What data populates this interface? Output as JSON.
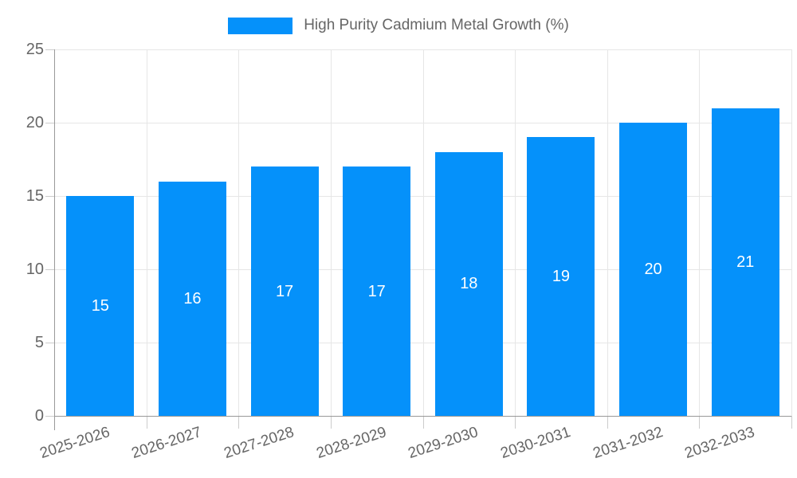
{
  "chart_data": {
    "type": "bar",
    "title": "High Purity Cadmium Metal Growth (%)",
    "legend_entries": [
      "High Purity Cadmium Metal Growth (%)"
    ],
    "legend_position": "top",
    "categories": [
      "2025-2026",
      "2026-2027",
      "2027-2028",
      "2028-2029",
      "2029-2030",
      "2030-2031",
      "2031-2032",
      "2032-2033"
    ],
    "series": [
      {
        "name": "High Purity Cadmium Metal Growth (%)",
        "values": [
          15,
          16,
          17,
          17,
          18,
          19,
          20,
          21
        ]
      }
    ],
    "bar_labels": [
      "15",
      "16",
      "17",
      "17",
      "18",
      "19",
      "20",
      "21"
    ],
    "xlabel": "",
    "ylabel": "",
    "ylim": [
      0,
      25
    ],
    "y_ticks": [
      0,
      5,
      10,
      15,
      20,
      25
    ],
    "grid": true
  },
  "colors": {
    "bar": "#0591FA",
    "bar_label": "#ffffff",
    "axis": "#999999",
    "grid": "#e6e6e6",
    "tick": "#cccccc",
    "text": "#666666"
  }
}
